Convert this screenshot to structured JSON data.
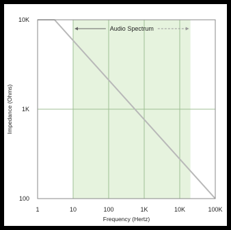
{
  "chart_data": {
    "type": "line",
    "xlabel": "Frequency (Hertz)",
    "ylabel": "Impedance (Ohms)",
    "x_scale": "log",
    "y_scale": "log",
    "xlim": [
      1,
      100000
    ],
    "ylim": [
      100,
      10000
    ],
    "x_ticks": [
      {
        "value": 1,
        "label": "1"
      },
      {
        "value": 10,
        "label": "10"
      },
      {
        "value": 100,
        "label": "100"
      },
      {
        "value": 1000,
        "label": "1K"
      },
      {
        "value": 10000,
        "label": "10K"
      },
      {
        "value": 100000,
        "label": "100K"
      }
    ],
    "y_ticks": [
      {
        "value": 100,
        "label": "100"
      },
      {
        "value": 1000,
        "label": "1K"
      },
      {
        "value": 10000,
        "label": "10K"
      }
    ],
    "grid": true,
    "band": {
      "label": "Audio Spectrum",
      "from": 10,
      "to": 20000,
      "color": "#e6f3de"
    },
    "series": [
      {
        "points": [
          [
            1,
            10000
          ],
          [
            3,
            10000
          ],
          [
            100000,
            100
          ]
        ],
        "color": "#b8b8b8"
      }
    ]
  }
}
